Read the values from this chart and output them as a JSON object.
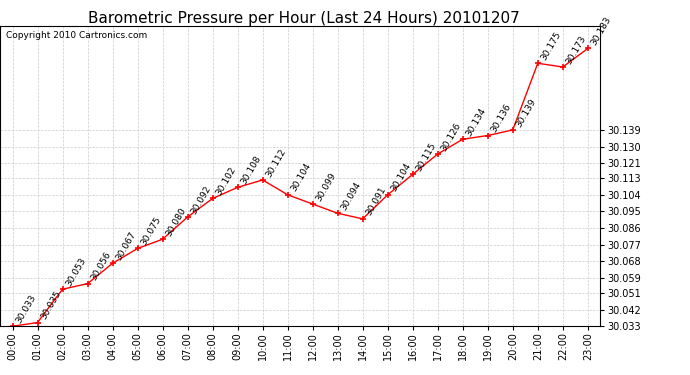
{
  "title": "Barometric Pressure per Hour (Last 24 Hours) 20101207",
  "copyright": "Copyright 2010 Cartronics.com",
  "hours": [
    "00:00",
    "01:00",
    "02:00",
    "03:00",
    "04:00",
    "05:00",
    "06:00",
    "07:00",
    "08:00",
    "09:00",
    "10:00",
    "11:00",
    "12:00",
    "13:00",
    "14:00",
    "15:00",
    "16:00",
    "17:00",
    "18:00",
    "19:00",
    "20:00",
    "21:00",
    "22:00",
    "23:00"
  ],
  "values": [
    30.033,
    30.035,
    30.053,
    30.056,
    30.067,
    30.075,
    30.08,
    30.092,
    30.102,
    30.108,
    30.112,
    30.104,
    30.099,
    30.094,
    30.091,
    30.104,
    30.115,
    30.126,
    30.134,
    30.136,
    30.139,
    30.175,
    30.173,
    30.183
  ],
  "ylim_min": 30.033,
  "ylim_max": 30.195,
  "yticks": [
    30.033,
    30.042,
    30.051,
    30.059,
    30.068,
    30.077,
    30.086,
    30.095,
    30.104,
    30.113,
    30.121,
    30.13,
    30.139
  ],
  "line_color": "#FF0000",
  "marker_color": "#FF0000",
  "bg_color": "#FFFFFF",
  "grid_color": "#CCCCCC",
  "title_fontsize": 11,
  "label_fontsize": 7,
  "annotation_fontsize": 6.5,
  "copyright_fontsize": 6.5
}
